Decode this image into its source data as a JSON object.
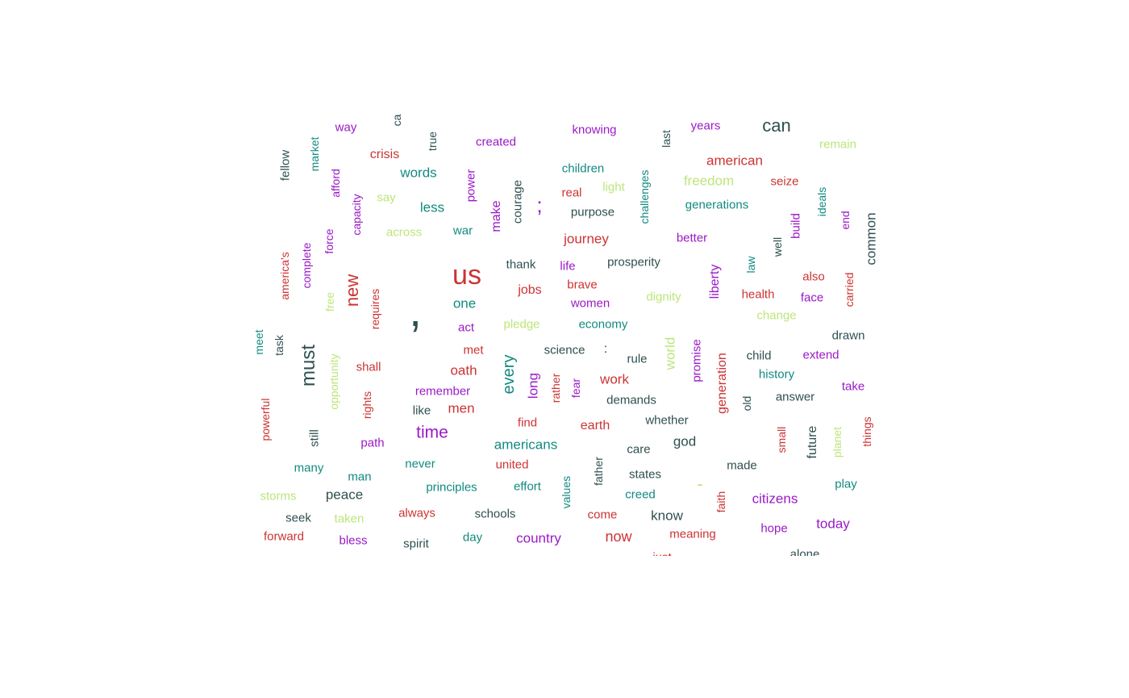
{
  "palette": {
    "dark": "#2f4f4f",
    "red": "#cc3333",
    "teal": "#118a80",
    "purple": "#9b19c7",
    "lime": "#bde57a"
  },
  "words": [
    {
      "text": "way",
      "color": "purple",
      "size": 15
    },
    {
      "text": "ca",
      "color": "dark",
      "size": 14,
      "vertical": true
    },
    {
      "text": "true",
      "color": "dark",
      "size": 14,
      "vertical": true
    },
    {
      "text": "created",
      "color": "purple",
      "size": 15
    },
    {
      "text": "knowing",
      "color": "purple",
      "size": 15
    },
    {
      "text": "last",
      "color": "dark",
      "size": 14,
      "vertical": true
    },
    {
      "text": "years",
      "color": "purple",
      "size": 15
    },
    {
      "text": "can",
      "color": "dark",
      "size": 22
    },
    {
      "text": "remain",
      "color": "lime",
      "size": 15
    },
    {
      "text": "fellow",
      "color": "dark",
      "size": 15,
      "vertical": true
    },
    {
      "text": "market",
      "color": "teal",
      "size": 14,
      "vertical": true
    },
    {
      "text": "crisis",
      "color": "red",
      "size": 16
    },
    {
      "text": "words",
      "color": "teal",
      "size": 17
    },
    {
      "text": "power",
      "color": "purple",
      "size": 15,
      "vertical": true
    },
    {
      "text": "children",
      "color": "teal",
      "size": 15
    },
    {
      "text": "challenges",
      "color": "teal",
      "size": 14,
      "vertical": true
    },
    {
      "text": "american",
      "color": "red",
      "size": 17
    },
    {
      "text": "freedom",
      "color": "lime",
      "size": 17
    },
    {
      "text": "seize",
      "color": "red",
      "size": 15
    },
    {
      "text": "afford",
      "color": "purple",
      "size": 14,
      "vertical": true
    },
    {
      "text": "say",
      "color": "lime",
      "size": 15
    },
    {
      "text": "less",
      "color": "teal",
      "size": 17
    },
    {
      "text": "make",
      "color": "purple",
      "size": 16,
      "vertical": true
    },
    {
      "text": "courage",
      "color": "dark",
      "size": 15,
      "vertical": true
    },
    {
      "text": ";",
      "color": "purple",
      "size": 26
    },
    {
      "text": "real",
      "color": "red",
      "size": 15
    },
    {
      "text": "light",
      "color": "lime",
      "size": 15
    },
    {
      "text": "purpose",
      "color": "dark",
      "size": 15
    },
    {
      "text": "generations",
      "color": "teal",
      "size": 15
    },
    {
      "text": "ideals",
      "color": "teal",
      "size": 14,
      "vertical": true
    },
    {
      "text": "end",
      "color": "purple",
      "size": 14,
      "vertical": true
    },
    {
      "text": "common",
      "color": "dark",
      "size": 17,
      "vertical": true
    },
    {
      "text": "capacity",
      "color": "purple",
      "size": 14,
      "vertical": true
    },
    {
      "text": "across",
      "color": "lime",
      "size": 15
    },
    {
      "text": "war",
      "color": "teal",
      "size": 15
    },
    {
      "text": "journey",
      "color": "red",
      "size": 17
    },
    {
      "text": "better",
      "color": "purple",
      "size": 15
    },
    {
      "text": "build",
      "color": "purple",
      "size": 15,
      "vertical": true
    },
    {
      "text": "well",
      "color": "dark",
      "size": 14,
      "vertical": true
    },
    {
      "text": "force",
      "color": "purple",
      "size": 14,
      "vertical": true
    },
    {
      "text": "complete",
      "color": "purple",
      "size": 14,
      "vertical": true
    },
    {
      "text": "america's",
      "color": "red",
      "size": 14,
      "vertical": true
    },
    {
      "text": "us",
      "color": "red",
      "size": 34
    },
    {
      "text": "thank",
      "color": "dark",
      "size": 15
    },
    {
      "text": "life",
      "color": "purple",
      "size": 15
    },
    {
      "text": "prosperity",
      "color": "dark",
      "size": 15
    },
    {
      "text": "law",
      "color": "teal",
      "size": 14,
      "vertical": true
    },
    {
      "text": "liberty",
      "color": "purple",
      "size": 16,
      "vertical": true
    },
    {
      "text": "also",
      "color": "red",
      "size": 15
    },
    {
      "text": "new",
      "color": "red",
      "size": 22,
      "vertical": true
    },
    {
      "text": "free",
      "color": "lime",
      "size": 14,
      "vertical": true
    },
    {
      "text": "requires",
      "color": "red",
      "size": 14,
      "vertical": true
    },
    {
      "text": ",",
      "color": "dark",
      "size": 56
    },
    {
      "text": "one",
      "color": "teal",
      "size": 17
    },
    {
      "text": "jobs",
      "color": "red",
      "size": 16
    },
    {
      "text": "brave",
      "color": "red",
      "size": 15
    },
    {
      "text": "women",
      "color": "purple",
      "size": 15
    },
    {
      "text": "dignity",
      "color": "lime",
      "size": 15
    },
    {
      "text": "health",
      "color": "red",
      "size": 15
    },
    {
      "text": "face",
      "color": "purple",
      "size": 15
    },
    {
      "text": "carried",
      "color": "red",
      "size": 14,
      "vertical": true
    },
    {
      "text": "change",
      "color": "lime",
      "size": 15
    },
    {
      "text": "act",
      "color": "purple",
      "size": 15
    },
    {
      "text": "pledge",
      "color": "lime",
      "size": 15
    },
    {
      "text": "economy",
      "color": "teal",
      "size": 15
    },
    {
      "text": "meet",
      "color": "teal",
      "size": 14,
      "vertical": true
    },
    {
      "text": "task",
      "color": "dark",
      "size": 14,
      "vertical": true
    },
    {
      "text": "must",
      "color": "dark",
      "size": 24,
      "vertical": true
    },
    {
      "text": "opportunity",
      "color": "lime",
      "size": 14,
      "vertical": true
    },
    {
      "text": "met",
      "color": "red",
      "size": 15
    },
    {
      "text": "science",
      "color": "dark",
      "size": 15
    },
    {
      "text": ":",
      "color": "dark",
      "size": 16
    },
    {
      "text": "world",
      "color": "lime",
      "size": 17,
      "vertical": true
    },
    {
      "text": "promise",
      "color": "purple",
      "size": 15,
      "vertical": true
    },
    {
      "text": "drawn",
      "color": "dark",
      "size": 15
    },
    {
      "text": "shall",
      "color": "red",
      "size": 15
    },
    {
      "text": "oath",
      "color": "red",
      "size": 17
    },
    {
      "text": "every",
      "color": "teal",
      "size": 20,
      "vertical": true
    },
    {
      "text": "rule",
      "color": "dark",
      "size": 15
    },
    {
      "text": "generation",
      "color": "red",
      "size": 16,
      "vertical": true
    },
    {
      "text": "child",
      "color": "dark",
      "size": 15
    },
    {
      "text": "extend",
      "color": "purple",
      "size": 15
    },
    {
      "text": "long",
      "color": "purple",
      "size": 17,
      "vertical": true
    },
    {
      "text": "rather",
      "color": "red",
      "size": 14,
      "vertical": true
    },
    {
      "text": "fear",
      "color": "purple",
      "size": 14,
      "vertical": true
    },
    {
      "text": "work",
      "color": "red",
      "size": 17
    },
    {
      "text": "history",
      "color": "teal",
      "size": 15
    },
    {
      "text": "take",
      "color": "purple",
      "size": 15
    },
    {
      "text": "remember",
      "color": "purple",
      "size": 15
    },
    {
      "text": "rights",
      "color": "red",
      "size": 14,
      "vertical": true
    },
    {
      "text": "demands",
      "color": "dark",
      "size": 15
    },
    {
      "text": "old",
      "color": "dark",
      "size": 14,
      "vertical": true
    },
    {
      "text": "answer",
      "color": "dark",
      "size": 15
    },
    {
      "text": "powerful",
      "color": "red",
      "size": 14,
      "vertical": true
    },
    {
      "text": "like",
      "color": "dark",
      "size": 15
    },
    {
      "text": "men",
      "color": "red",
      "size": 17
    },
    {
      "text": "find",
      "color": "red",
      "size": 15
    },
    {
      "text": "earth",
      "color": "red",
      "size": 16
    },
    {
      "text": "whether",
      "color": "dark",
      "size": 15
    },
    {
      "text": "things",
      "color": "red",
      "size": 14,
      "vertical": true
    },
    {
      "text": "still",
      "color": "dark",
      "size": 15,
      "vertical": true
    },
    {
      "text": "time",
      "color": "purple",
      "size": 21
    },
    {
      "text": "small",
      "color": "red",
      "size": 14,
      "vertical": true
    },
    {
      "text": "future",
      "color": "dark",
      "size": 16,
      "vertical": true
    },
    {
      "text": "planet",
      "color": "lime",
      "size": 14,
      "vertical": true
    },
    {
      "text": "path",
      "color": "purple",
      "size": 15
    },
    {
      "text": "americans",
      "color": "teal",
      "size": 17
    },
    {
      "text": "care",
      "color": "dark",
      "size": 15
    },
    {
      "text": "god",
      "color": "dark",
      "size": 17
    },
    {
      "text": "many",
      "color": "teal",
      "size": 15
    },
    {
      "text": "never",
      "color": "teal",
      "size": 15
    },
    {
      "text": "united",
      "color": "red",
      "size": 15
    },
    {
      "text": "father",
      "color": "dark",
      "size": 14,
      "vertical": true
    },
    {
      "text": "made",
      "color": "dark",
      "size": 15
    },
    {
      "text": "man",
      "color": "teal",
      "size": 15
    },
    {
      "text": "states",
      "color": "dark",
      "size": 15
    },
    {
      "text": "storms",
      "color": "lime",
      "size": 15
    },
    {
      "text": "peace",
      "color": "dark",
      "size": 17
    },
    {
      "text": "principles",
      "color": "teal",
      "size": 15
    },
    {
      "text": "effort",
      "color": "teal",
      "size": 15
    },
    {
      "text": "values",
      "color": "teal",
      "size": 14,
      "vertical": true
    },
    {
      "text": "creed",
      "color": "teal",
      "size": 15
    },
    {
      "text": "-",
      "color": "lime",
      "size": 22
    },
    {
      "text": "faith",
      "color": "red",
      "size": 14,
      "vertical": true
    },
    {
      "text": "citizens",
      "color": "purple",
      "size": 17
    },
    {
      "text": "play",
      "color": "teal",
      "size": 15
    },
    {
      "text": "seek",
      "color": "dark",
      "size": 15
    },
    {
      "text": "taken",
      "color": "lime",
      "size": 15
    },
    {
      "text": "always",
      "color": "red",
      "size": 15
    },
    {
      "text": "schools",
      "color": "dark",
      "size": 15
    },
    {
      "text": "come",
      "color": "red",
      "size": 15
    },
    {
      "text": "know",
      "color": "dark",
      "size": 17
    },
    {
      "text": "today",
      "color": "purple",
      "size": 17
    },
    {
      "text": "forward",
      "color": "red",
      "size": 15
    },
    {
      "text": "bless",
      "color": "purple",
      "size": 15
    },
    {
      "text": "day",
      "color": "teal",
      "size": 15
    },
    {
      "text": "country",
      "color": "purple",
      "size": 17
    },
    {
      "text": "now",
      "color": "red",
      "size": 18
    },
    {
      "text": "meaning",
      "color": "red",
      "size": 15
    },
    {
      "text": "hope",
      "color": "purple",
      "size": 15
    },
    {
      "text": "spirit",
      "color": "dark",
      "size": 15
    },
    {
      "text": "alone",
      "color": "dark",
      "size": 15
    },
    {
      "text": "just",
      "color": "red",
      "size": 15
    }
  ]
}
